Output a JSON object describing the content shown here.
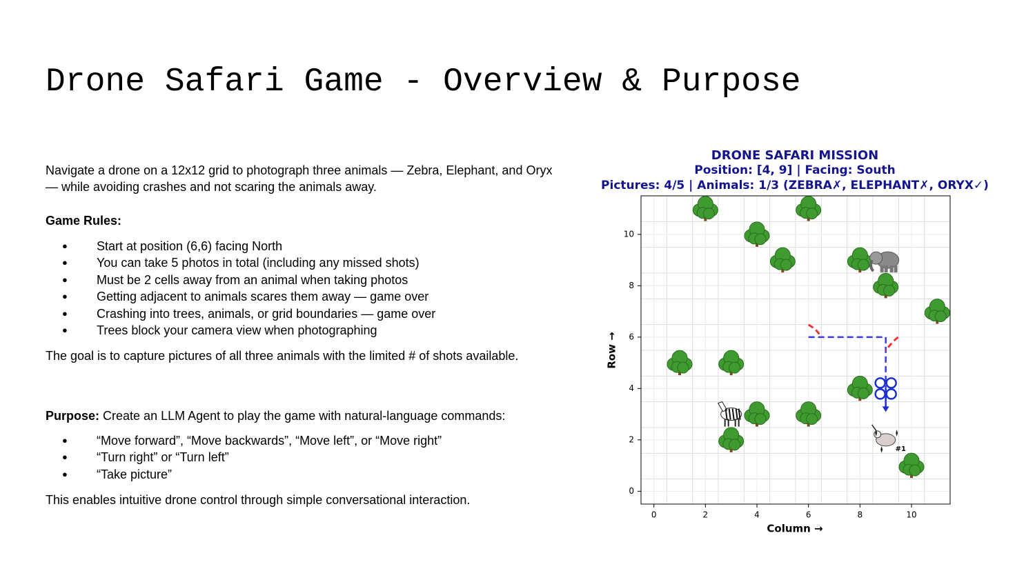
{
  "title": "Drone Safari Game - Overview & Purpose",
  "intro": "Navigate a drone on a 12x12 grid to photograph three animals — Zebra, Elephant, and Oryx — while avoiding crashes and not scaring the animals away.",
  "rules_heading": "Game Rules:",
  "rules": [
    "Start at position (6,6) facing North",
    "You can take 5 photos in total (including any missed shots)",
    "Must be 2 cells away from an animal when taking photos",
    "Getting adjacent to animals scares them away — game over",
    "Crashing into trees, animals, or grid boundaries — game over",
    "Trees block your camera view when photographing"
  ],
  "goal": "The goal is to capture pictures of all three animals with the limited # of shots available.",
  "purpose_label": "Purpose:",
  "purpose_text": "Create an LLM Agent to play the game with natural-language commands:",
  "commands": [
    "“Move forward”, “Move backwards”, “Move left”, or “Move right”",
    "“Turn right” or “Turn left”",
    "“Take picture”"
  ],
  "closing": "This enables intuitive drone control through simple conversational interaction.",
  "chart_data": {
    "type": "grid_map",
    "title": "DRONE SAFARI MISSION",
    "subtitle": [
      "Position: [4, 9] | Facing: South",
      "Pictures: 4/5 | Animals: 1/3 (ZEBRA✗, ELEPHANT✗, ORYX✓)"
    ],
    "title_color": "#14148c",
    "x_label": "Column →",
    "y_label": "Row →",
    "xlim": [
      -0.5,
      11.5
    ],
    "ylim": [
      -0.5,
      11.5
    ],
    "xticks": [
      0,
      2,
      4,
      6,
      8,
      10
    ],
    "yticks": [
      0,
      2,
      4,
      6,
      8,
      10
    ],
    "grid": true,
    "trees": {
      "x": [
        2,
        6,
        4,
        5,
        8,
        9,
        11,
        1,
        3,
        8,
        4,
        6,
        3,
        10
      ],
      "y": [
        11,
        11,
        10,
        9,
        9,
        8,
        7,
        5,
        5,
        4,
        3,
        3,
        2,
        1
      ]
    },
    "elephant": {
      "x": 9,
      "y": 9
    },
    "zebra": {
      "x": 3,
      "y": 3
    },
    "oryx": {
      "x": 9,
      "y": 2,
      "label": "#1"
    },
    "path": {
      "x": [
        6,
        9,
        9
      ],
      "y": [
        6,
        6,
        4
      ],
      "color": "#3a3ad8"
    },
    "drone": {
      "x": 9,
      "y": 4,
      "color": "#1a2fd0"
    }
  }
}
